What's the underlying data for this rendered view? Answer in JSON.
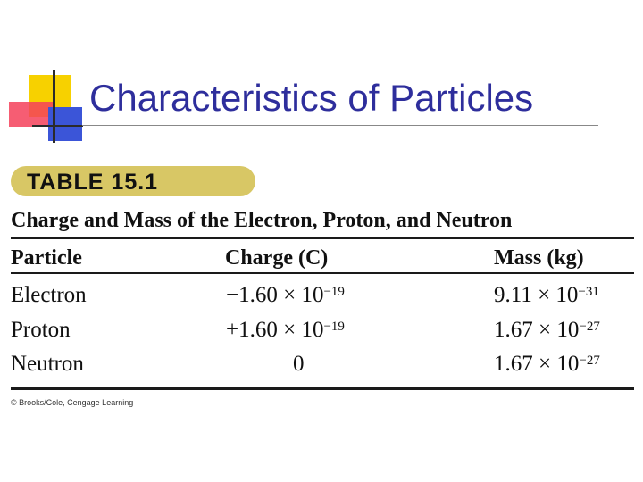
{
  "slide": {
    "title": "Characteristics of Particles"
  },
  "table": {
    "label": "TABLE 15.1",
    "caption": "Charge and Mass of the Electron, Proton, and Neutron",
    "columns": [
      "Particle",
      "Charge (C)",
      "Mass (kg)"
    ],
    "rows": [
      {
        "particle": "Electron",
        "charge_mantissa": "−1.60 × 10",
        "charge_exponent": "−19",
        "mass_mantissa": "9.11 × 10",
        "mass_exponent": "−31"
      },
      {
        "particle": "Proton",
        "charge_mantissa": "+1.60 × 10",
        "charge_exponent": "−19",
        "mass_mantissa": "1.67 × 10",
        "mass_exponent": "−27"
      },
      {
        "particle": "Neutron",
        "charge_mantissa": "0",
        "charge_exponent": "",
        "mass_mantissa": "1.67 × 10",
        "mass_exponent": "−27"
      }
    ],
    "credit": "© Brooks/Cole, Cengage Learning"
  },
  "colors": {
    "title": "#2e2e9c",
    "label_pill": "#d8c765",
    "deco_yellow": "#f7d100",
    "deco_red": "#f5415a",
    "deco_blue": "#3b55d8"
  }
}
